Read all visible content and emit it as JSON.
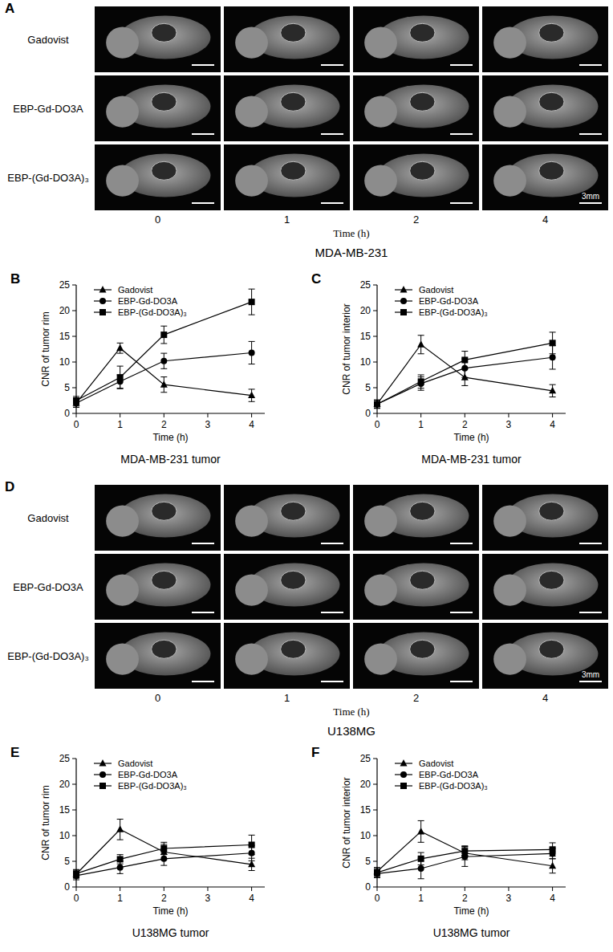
{
  "image_panels": [
    {
      "panel": "A",
      "row_labels": [
        "Gadovist",
        "EBP-Gd-DO3A",
        "EBP-(Gd-DO3A)₃"
      ],
      "time_labels": [
        "0",
        "1",
        "2",
        "4"
      ],
      "x_label": "Time (h)",
      "scale_bar": "3mm",
      "caption": "MDA-MB-231"
    },
    {
      "panel": "D",
      "row_labels": [
        "Gadovist",
        "EBP-Gd-DO3A",
        "EBP-(Gd-DO3A)₃"
      ],
      "time_labels": [
        "0",
        "1",
        "2",
        "4"
      ],
      "x_label": "Time (h)",
      "scale_bar": "3mm",
      "caption": "U138MG"
    }
  ],
  "chart_data": [
    {
      "type": "line",
      "panel": "B",
      "title": "MDA-MB-231 tumor",
      "x_label": "Time (h)",
      "y_label": "CNR of tumor rim",
      "x": [
        0,
        1,
        2,
        4
      ],
      "xlim": [
        0,
        4.3
      ],
      "xticks": [
        0,
        1,
        2,
        3,
        4
      ],
      "ylim": [
        0,
        25
      ],
      "yticks": [
        0,
        5,
        10,
        15,
        20,
        25
      ],
      "legend": "upper left",
      "series": [
        {
          "name": "Gadovist",
          "color": "#000000",
          "marker": "triangle",
          "values": [
            2.0,
            12.7,
            5.6,
            3.5
          ],
          "errors": [
            0.8,
            1.0,
            1.5,
            1.2
          ]
        },
        {
          "name": "EBP-Gd-DO3A",
          "color": "#000000",
          "marker": "circle",
          "values": [
            2.0,
            6.2,
            10.2,
            11.8
          ],
          "errors": [
            0.8,
            1.3,
            1.5,
            2.2
          ]
        },
        {
          "name": "EBP-(Gd-DO3A)₃",
          "color": "#000000",
          "marker": "square",
          "values": [
            2.5,
            7.0,
            15.3,
            21.7
          ],
          "errors": [
            0.8,
            2.2,
            1.7,
            2.5
          ]
        }
      ]
    },
    {
      "type": "line",
      "panel": "C",
      "title": "MDA-MB-231 tumor",
      "x_label": "Time (h)",
      "y_label": "CNR of tumor interior",
      "x": [
        0,
        1,
        2,
        4
      ],
      "xlim": [
        0,
        4.3
      ],
      "xticks": [
        0,
        1,
        2,
        3,
        4
      ],
      "ylim": [
        0,
        25
      ],
      "yticks": [
        0,
        5,
        10,
        15,
        20,
        25
      ],
      "legend": "upper left",
      "series": [
        {
          "name": "Gadovist",
          "color": "#000000",
          "marker": "triangle",
          "values": [
            1.8,
            13.4,
            7.0,
            4.4
          ],
          "errors": [
            0.8,
            1.8,
            1.6,
            1.2
          ]
        },
        {
          "name": "EBP-Gd-DO3A",
          "color": "#000000",
          "marker": "circle",
          "values": [
            1.8,
            5.8,
            8.8,
            10.9
          ],
          "errors": [
            0.8,
            1.3,
            1.8,
            2.3
          ]
        },
        {
          "name": "EBP-(Gd-DO3A)₃",
          "color": "#000000",
          "marker": "square",
          "values": [
            1.8,
            6.2,
            10.4,
            13.7
          ],
          "errors": [
            0.8,
            1.3,
            1.7,
            2.1
          ]
        }
      ]
    },
    {
      "type": "line",
      "panel": "E",
      "title": "U138MG tumor",
      "x_label": "Time (h)",
      "y_label": "CNR of tumor rim",
      "x": [
        0,
        1,
        2,
        4
      ],
      "xlim": [
        0,
        4.3
      ],
      "xticks": [
        0,
        1,
        2,
        3,
        4
      ],
      "ylim": [
        0,
        25
      ],
      "yticks": [
        0,
        5,
        10,
        15,
        20,
        25
      ],
      "legend": "upper left",
      "series": [
        {
          "name": "Gadovist",
          "color": "#000000",
          "marker": "triangle",
          "values": [
            2.5,
            11.2,
            6.8,
            4.4
          ],
          "errors": [
            0.8,
            2.0,
            1.5,
            1.2
          ]
        },
        {
          "name": "EBP-Gd-DO3A",
          "color": "#000000",
          "marker": "circle",
          "values": [
            2.2,
            3.8,
            5.5,
            6.6
          ],
          "errors": [
            0.8,
            1.2,
            1.3,
            1.5
          ]
        },
        {
          "name": "EBP-(Gd-DO3A)₃",
          "color": "#000000",
          "marker": "square",
          "values": [
            2.6,
            5.4,
            7.5,
            8.2
          ],
          "errors": [
            0.8,
            0.9,
            1.2,
            1.9
          ]
        }
      ]
    },
    {
      "type": "line",
      "panel": "F",
      "title": "U138MG tumor",
      "x_label": "Time (h)",
      "y_label": "CNR of tumor interior",
      "x": [
        0,
        1,
        2,
        4
      ],
      "xlim": [
        0,
        4.3
      ],
      "xticks": [
        0,
        1,
        2,
        3,
        4
      ],
      "ylim": [
        0,
        25
      ],
      "yticks": [
        0,
        5,
        10,
        15,
        20,
        25
      ],
      "legend": "upper left",
      "series": [
        {
          "name": "Gadovist",
          "color": "#000000",
          "marker": "triangle",
          "values": [
            3.0,
            10.8,
            6.6,
            4.1
          ],
          "errors": [
            0.8,
            2.1,
            1.3,
            1.4
          ]
        },
        {
          "name": "EBP-Gd-DO3A",
          "color": "#000000",
          "marker": "circle",
          "values": [
            2.6,
            3.6,
            5.9,
            6.5
          ],
          "errors": [
            0.8,
            2.0,
            1.9,
            1.0
          ]
        },
        {
          "name": "EBP-(Gd-DO3A)₃",
          "color": "#000000",
          "marker": "square",
          "values": [
            2.8,
            5.5,
            7.0,
            7.3
          ],
          "errors": [
            0.8,
            1.2,
            1.0,
            1.3
          ]
        }
      ]
    }
  ]
}
